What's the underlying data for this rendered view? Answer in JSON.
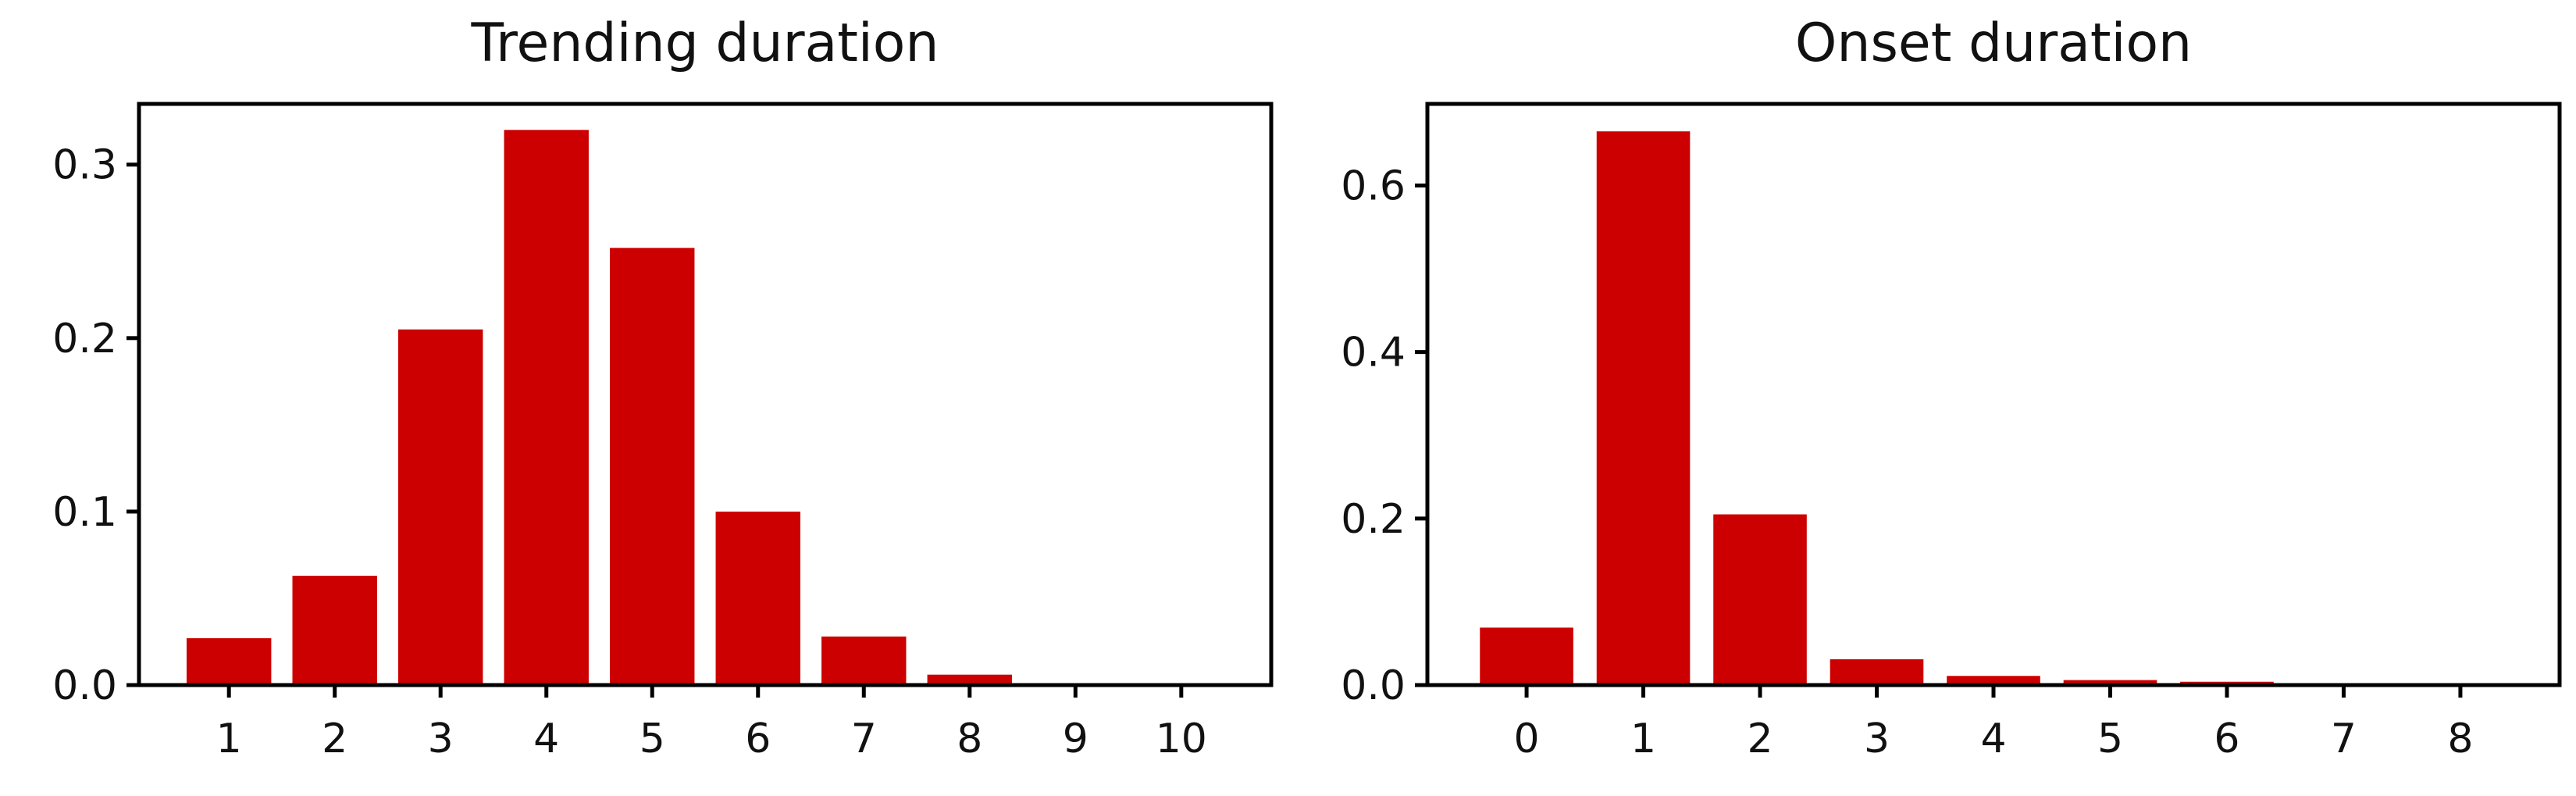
{
  "chart_data": [
    {
      "type": "bar",
      "title": "Trending duration",
      "xlabel": "",
      "ylabel": "",
      "categories": [
        "1",
        "2",
        "3",
        "4",
        "5",
        "6",
        "7",
        "8",
        "9",
        "10"
      ],
      "values": [
        0.027,
        0.063,
        0.205,
        0.32,
        0.252,
        0.1,
        0.028,
        0.006,
        0.001,
        0.0005
      ],
      "ylim": [
        0,
        0.335
      ],
      "yticks": [
        0.0,
        0.1,
        0.2,
        0.3
      ],
      "ytick_labels": [
        "0.0",
        "0.1",
        "0.2",
        "0.3"
      ],
      "color": "#cc0000",
      "grid": false
    },
    {
      "type": "bar",
      "title": "Onset duration",
      "xlabel": "",
      "ylabel": "",
      "categories": [
        "0",
        "1",
        "2",
        "3",
        "4",
        "5",
        "6",
        "7",
        "8"
      ],
      "values": [
        0.069,
        0.665,
        0.205,
        0.031,
        0.011,
        0.006,
        0.004,
        0.001,
        0.001
      ],
      "ylim": [
        0,
        0.698
      ],
      "yticks": [
        0.0,
        0.2,
        0.4,
        0.6
      ],
      "ytick_labels": [
        "0.0",
        "0.2",
        "0.4",
        "0.6"
      ],
      "color": "#cc0000",
      "grid": false
    }
  ]
}
